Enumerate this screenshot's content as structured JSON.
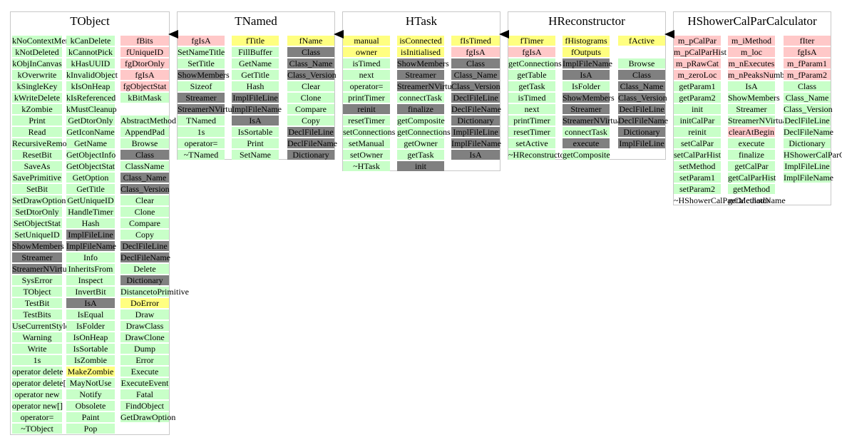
{
  "classes": [
    {
      "title": "TObject",
      "columns": [
        [
          {
            "t": "kNoContextMenu",
            "k": "m"
          },
          {
            "t": "kNotDeleted",
            "k": "m"
          },
          {
            "t": "kObjInCanvas",
            "k": "m"
          },
          {
            "t": "kOverwrite",
            "k": "m"
          },
          {
            "t": "kSingleKey",
            "k": "m"
          },
          {
            "t": "kWriteDelete",
            "k": "m"
          },
          {
            "t": "kZombie",
            "k": "m"
          },
          {
            "t": "Print",
            "k": "m"
          },
          {
            "t": "Read",
            "k": "m"
          },
          {
            "t": "RecursiveRemove",
            "k": "m"
          },
          {
            "t": "ResetBit",
            "k": "m"
          },
          {
            "t": "SaveAs",
            "k": "m"
          },
          {
            "t": "SavePrimitive",
            "k": "m"
          },
          {
            "t": "SetBit",
            "k": "m"
          },
          {
            "t": "SetDrawOption",
            "k": "m"
          },
          {
            "t": "SetDtorOnly",
            "k": "m"
          },
          {
            "t": "SetObjectStat",
            "k": "m"
          },
          {
            "t": "SetUniqueID",
            "k": "m"
          },
          {
            "t": "ShowMembers",
            "k": "d"
          },
          {
            "t": "Streamer",
            "k": "d"
          },
          {
            "t": "StreamerNVirtual",
            "k": "d"
          },
          {
            "t": "SysError",
            "k": "m"
          },
          {
            "t": "TObject",
            "k": "m"
          },
          {
            "t": "TestBit",
            "k": "m"
          },
          {
            "t": "TestBits",
            "k": "m"
          },
          {
            "t": "UseCurrentStyle",
            "k": "m"
          },
          {
            "t": "Warning",
            "k": "m"
          },
          {
            "t": "Write",
            "k": "m"
          },
          {
            "t": "1s",
            "k": "m"
          },
          {
            "t": "operator delete",
            "k": "m"
          },
          {
            "t": "operator delete[]",
            "k": "m"
          },
          {
            "t": "operator new",
            "k": "m"
          },
          {
            "t": "operator new[]",
            "k": "m"
          },
          {
            "t": "operator=",
            "k": "m"
          },
          {
            "t": "~TObject",
            "k": "m"
          }
        ],
        [
          {
            "t": "kCanDelete",
            "k": "m"
          },
          {
            "t": "kCannotPick",
            "k": "m"
          },
          {
            "t": "kHasUUID",
            "k": "m"
          },
          {
            "t": "kInvalidObject",
            "k": "m"
          },
          {
            "t": "kIsOnHeap",
            "k": "m"
          },
          {
            "t": "kIsReferenced",
            "k": "m"
          },
          {
            "t": "kMustCleanup",
            "k": "m"
          },
          {
            "t": "GetDtorOnly",
            "k": "m"
          },
          {
            "t": "GetIconName",
            "k": "m"
          },
          {
            "t": "GetName",
            "k": "m"
          },
          {
            "t": "GetObjectInfo",
            "k": "m"
          },
          {
            "t": "GetObjectStat",
            "k": "m"
          },
          {
            "t": "GetOption",
            "k": "m"
          },
          {
            "t": "GetTitle",
            "k": "m"
          },
          {
            "t": "GetUniqueID",
            "k": "m"
          },
          {
            "t": "HandleTimer",
            "k": "m"
          },
          {
            "t": "Hash",
            "k": "m"
          },
          {
            "t": "ImplFileLine",
            "k": "d"
          },
          {
            "t": "ImplFileName",
            "k": "d"
          },
          {
            "t": "Info",
            "k": "m"
          },
          {
            "t": "InheritsFrom",
            "k": "m"
          },
          {
            "t": "Inspect",
            "k": "m"
          },
          {
            "t": "InvertBit",
            "k": "m"
          },
          {
            "t": "IsA",
            "k": "d"
          },
          {
            "t": "IsEqual",
            "k": "m"
          },
          {
            "t": "IsFolder",
            "k": "m"
          },
          {
            "t": "IsOnHeap",
            "k": "m"
          },
          {
            "t": "IsSortable",
            "k": "m"
          },
          {
            "t": "IsZombie",
            "k": "m"
          },
          {
            "t": "MakeZombie",
            "k": "y"
          },
          {
            "t": "MayNotUse",
            "k": "m"
          },
          {
            "t": "Notify",
            "k": "m"
          },
          {
            "t": "Obsolete",
            "k": "m"
          },
          {
            "t": "Paint",
            "k": "m"
          },
          {
            "t": "Pop",
            "k": "m"
          }
        ],
        [
          {
            "t": "fBits",
            "k": "f"
          },
          {
            "t": "fUniqueID",
            "k": "f"
          },
          {
            "t": "fgDtorOnly",
            "k": "f"
          },
          {
            "t": "fgIsA",
            "k": "f"
          },
          {
            "t": "fgObjectStat",
            "k": "f"
          },
          {
            "t": "kBitMask",
            "k": "m"
          },
          {
            "t": "",
            "k": "g"
          },
          {
            "t": "AbstractMethod",
            "k": "m"
          },
          {
            "t": "AppendPad",
            "k": "m"
          },
          {
            "t": "Browse",
            "k": "m"
          },
          {
            "t": "Class",
            "k": "d"
          },
          {
            "t": "ClassName",
            "k": "m"
          },
          {
            "t": "Class_Name",
            "k": "d"
          },
          {
            "t": "Class_Version",
            "k": "d"
          },
          {
            "t": "Clear",
            "k": "m"
          },
          {
            "t": "Clone",
            "k": "m"
          },
          {
            "t": "Compare",
            "k": "m"
          },
          {
            "t": "Copy",
            "k": "m"
          },
          {
            "t": "DeclFileLine",
            "k": "d"
          },
          {
            "t": "DeclFileName",
            "k": "d"
          },
          {
            "t": "Delete",
            "k": "m"
          },
          {
            "t": "Dictionary",
            "k": "d"
          },
          {
            "t": "DistancetoPrimitive",
            "k": "m"
          },
          {
            "t": "DoError",
            "k": "y"
          },
          {
            "t": "Draw",
            "k": "m"
          },
          {
            "t": "DrawClass",
            "k": "m"
          },
          {
            "t": "DrawClone",
            "k": "m"
          },
          {
            "t": "Dump",
            "k": "m"
          },
          {
            "t": "Error",
            "k": "m"
          },
          {
            "t": "Execute",
            "k": "m"
          },
          {
            "t": "ExecuteEvent",
            "k": "m"
          },
          {
            "t": "Fatal",
            "k": "m"
          },
          {
            "t": "FindObject",
            "k": "m"
          },
          {
            "t": "GetDrawOption",
            "k": "m"
          }
        ]
      ]
    },
    {
      "title": "TNamed",
      "columns": [
        [
          {
            "t": "fgIsA",
            "k": "f"
          },
          {
            "t": "SetNameTitle",
            "k": "m"
          },
          {
            "t": "SetTitle",
            "k": "m"
          },
          {
            "t": "ShowMembers",
            "k": "d"
          },
          {
            "t": "Sizeof",
            "k": "m"
          },
          {
            "t": "Streamer",
            "k": "d"
          },
          {
            "t": "StreamerNVirtual",
            "k": "d"
          },
          {
            "t": "TNamed",
            "k": "m"
          },
          {
            "t": "1s",
            "k": "m"
          },
          {
            "t": "operator=",
            "k": "m"
          },
          {
            "t": "~TNamed",
            "k": "m"
          }
        ],
        [
          {
            "t": "fTitle",
            "k": "y"
          },
          {
            "t": "FillBuffer",
            "k": "m"
          },
          {
            "t": "GetName",
            "k": "m"
          },
          {
            "t": "GetTitle",
            "k": "m"
          },
          {
            "t": "Hash",
            "k": "m"
          },
          {
            "t": "ImplFileLine",
            "k": "d"
          },
          {
            "t": "ImplFileName",
            "k": "d"
          },
          {
            "t": "IsA",
            "k": "d"
          },
          {
            "t": "IsSortable",
            "k": "m"
          },
          {
            "t": "Print",
            "k": "m"
          },
          {
            "t": "SetName",
            "k": "m"
          }
        ],
        [
          {
            "t": "fName",
            "k": "y"
          },
          {
            "t": "Class",
            "k": "d"
          },
          {
            "t": "Class_Name",
            "k": "d"
          },
          {
            "t": "Class_Version",
            "k": "d"
          },
          {
            "t": "Clear",
            "k": "m"
          },
          {
            "t": "Clone",
            "k": "m"
          },
          {
            "t": "Compare",
            "k": "m"
          },
          {
            "t": "Copy",
            "k": "m"
          },
          {
            "t": "DeclFileLine",
            "k": "d"
          },
          {
            "t": "DeclFileName",
            "k": "d"
          },
          {
            "t": "Dictionary",
            "k": "d"
          }
        ]
      ]
    },
    {
      "title": "HTask",
      "columns": [
        [
          {
            "t": "manual",
            "k": "y"
          },
          {
            "t": "owner",
            "k": "y"
          },
          {
            "t": "isTimed",
            "k": "m"
          },
          {
            "t": "next",
            "k": "m"
          },
          {
            "t": "operator=",
            "k": "m"
          },
          {
            "t": "printTimer",
            "k": "m"
          },
          {
            "t": "reinit",
            "k": "d"
          },
          {
            "t": "resetTimer",
            "k": "m"
          },
          {
            "t": "setConnections",
            "k": "m"
          },
          {
            "t": "setManual",
            "k": "m"
          },
          {
            "t": "setOwner",
            "k": "m"
          },
          {
            "t": "~HTask",
            "k": "m"
          }
        ],
        [
          {
            "t": "isConnected",
            "k": "y"
          },
          {
            "t": "isInitialised",
            "k": "y"
          },
          {
            "t": "ShowMembers",
            "k": "d"
          },
          {
            "t": "Streamer",
            "k": "d"
          },
          {
            "t": "StreamerNVirtual",
            "k": "d"
          },
          {
            "t": "connectTask",
            "k": "m"
          },
          {
            "t": "finalize",
            "k": "d"
          },
          {
            "t": "getComposite",
            "k": "m"
          },
          {
            "t": "getConnections",
            "k": "m"
          },
          {
            "t": "getOwner",
            "k": "m"
          },
          {
            "t": "getTask",
            "k": "m"
          },
          {
            "t": "init",
            "k": "d"
          }
        ],
        [
          {
            "t": "fIsTimed",
            "k": "y"
          },
          {
            "t": "fgIsA",
            "k": "f"
          },
          {
            "t": "Class",
            "k": "d"
          },
          {
            "t": "Class_Name",
            "k": "d"
          },
          {
            "t": "Class_Version",
            "k": "d"
          },
          {
            "t": "DeclFileLine",
            "k": "d"
          },
          {
            "t": "DeclFileName",
            "k": "d"
          },
          {
            "t": "Dictionary",
            "k": "d"
          },
          {
            "t": "ImplFileLine",
            "k": "d"
          },
          {
            "t": "ImplFileName",
            "k": "d"
          },
          {
            "t": "IsA",
            "k": "d"
          }
        ]
      ]
    },
    {
      "title": "HReconstructor",
      "columns": [
        [
          {
            "t": "fTimer",
            "k": "y"
          },
          {
            "t": "fgIsA",
            "k": "f"
          },
          {
            "t": "getConnections",
            "k": "m"
          },
          {
            "t": "getTable",
            "k": "m"
          },
          {
            "t": "getTask",
            "k": "m"
          },
          {
            "t": "isTimed",
            "k": "m"
          },
          {
            "t": "next",
            "k": "m"
          },
          {
            "t": "printTimer",
            "k": "m"
          },
          {
            "t": "resetTimer",
            "k": "m"
          },
          {
            "t": "setActive",
            "k": "m"
          },
          {
            "t": "~HReconstructor",
            "k": "m"
          }
        ],
        [
          {
            "t": "fHistograms",
            "k": "y"
          },
          {
            "t": "fOutputs",
            "k": "y"
          },
          {
            "t": "ImplFileName",
            "k": "d"
          },
          {
            "t": "IsA",
            "k": "d"
          },
          {
            "t": "IsFolder",
            "k": "m"
          },
          {
            "t": "ShowMembers",
            "k": "d"
          },
          {
            "t": "Streamer",
            "k": "d"
          },
          {
            "t": "StreamerNVirtual",
            "k": "d"
          },
          {
            "t": "connectTask",
            "k": "m"
          },
          {
            "t": "execute",
            "k": "d"
          },
          {
            "t": "getComposite",
            "k": "m"
          }
        ],
        [
          {
            "t": "fActive",
            "k": "y"
          },
          {
            "t": "",
            "k": "g"
          },
          {
            "t": "Browse",
            "k": "m"
          },
          {
            "t": "Class",
            "k": "d"
          },
          {
            "t": "Class_Name",
            "k": "d"
          },
          {
            "t": "Class_Version",
            "k": "d"
          },
          {
            "t": "DeclFileLine",
            "k": "d"
          },
          {
            "t": "DeclFileName",
            "k": "d"
          },
          {
            "t": "Dictionary",
            "k": "d"
          },
          {
            "t": "ImplFileLine",
            "k": "d"
          }
        ]
      ]
    },
    {
      "title": "HShowerCalParCalculator",
      "columns": [
        [
          {
            "t": "m_pCalPar",
            "k": "f"
          },
          {
            "t": "m_pCalParHist",
            "k": "f"
          },
          {
            "t": "m_pRawCat",
            "k": "f"
          },
          {
            "t": "m_zeroLoc",
            "k": "f"
          },
          {
            "t": "getParam1",
            "k": "m"
          },
          {
            "t": "getParam2",
            "k": "m"
          },
          {
            "t": "init",
            "k": "m"
          },
          {
            "t": "initCalPar",
            "k": "m"
          },
          {
            "t": "reinit",
            "k": "m"
          },
          {
            "t": "setCalPar",
            "k": "m"
          },
          {
            "t": "setCalParHist",
            "k": "m"
          },
          {
            "t": "setMethod",
            "k": "m"
          },
          {
            "t": "setParam1",
            "k": "m"
          },
          {
            "t": "setParam2",
            "k": "m"
          },
          {
            "t": "~HShowerCalParCalculator",
            "k": "t"
          }
        ],
        [
          {
            "t": "m_iMethod",
            "k": "f"
          },
          {
            "t": "m_loc",
            "k": "f"
          },
          {
            "t": "m_nExecutes",
            "k": "f"
          },
          {
            "t": "m_nPeaksNumber",
            "k": "f"
          },
          {
            "t": "IsA",
            "k": "m"
          },
          {
            "t": "ShowMembers",
            "k": "m"
          },
          {
            "t": "Streamer",
            "k": "m"
          },
          {
            "t": "StreamerNVirtual",
            "k": "m"
          },
          {
            "t": "clearAtBegin",
            "k": "f"
          },
          {
            "t": "execute",
            "k": "m"
          },
          {
            "t": "finalize",
            "k": "m"
          },
          {
            "t": "getCalPar",
            "k": "m"
          },
          {
            "t": "getCalParHist",
            "k": "m"
          },
          {
            "t": "getMethod",
            "k": "m"
          },
          {
            "t": "getMethodName",
            "k": "t"
          }
        ],
        [
          {
            "t": "fIter",
            "k": "f"
          },
          {
            "t": "fgIsA",
            "k": "f"
          },
          {
            "t": "m_fParam1",
            "k": "f"
          },
          {
            "t": "m_fParam2",
            "k": "f"
          },
          {
            "t": "Class",
            "k": "m"
          },
          {
            "t": "Class_Name",
            "k": "m"
          },
          {
            "t": "Class_Version",
            "k": "m"
          },
          {
            "t": "DeclFileLine",
            "k": "m"
          },
          {
            "t": "DeclFileName",
            "k": "m"
          },
          {
            "t": "Dictionary",
            "k": "m"
          },
          {
            "t": "HShowerCalParCalculator",
            "k": "m"
          },
          {
            "t": "ImplFileLine",
            "k": "m"
          },
          {
            "t": "ImplFileName",
            "k": "m"
          }
        ]
      ]
    }
  ],
  "colors": {
    "data_member": "#ffc8c8",
    "highlight_member": "#ffff80",
    "method": "#c8ffc8",
    "dark_member": "#808080",
    "border": "#c8c8c8",
    "arrow": "#000000"
  }
}
